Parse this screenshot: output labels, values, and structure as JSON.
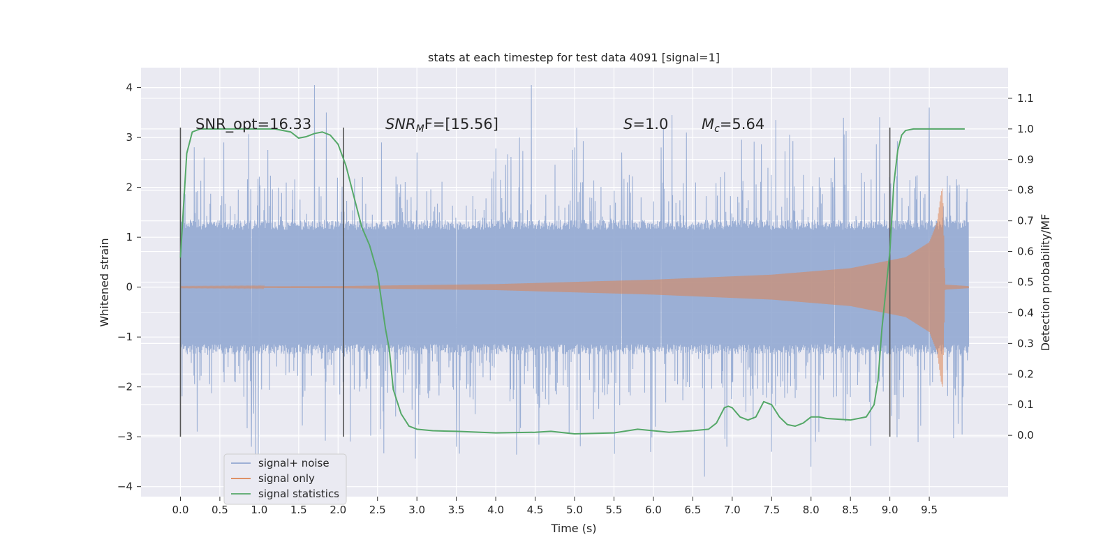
{
  "chart_data": {
    "type": "line",
    "title": "stats at each timestep for test data 4091 [signal=1]",
    "xlabel": "Time (s)",
    "ylabel": "Whitened strain",
    "ylabel_right": "Detection probability/MF",
    "xlim": [
      -0.5,
      10.5
    ],
    "ylim": [
      -4.2,
      4.4
    ],
    "ylim_right": [
      -0.2,
      1.2
    ],
    "x_ticks": [
      "0.0",
      "0.5",
      "1.0",
      "1.5",
      "2.0",
      "2.5",
      "3.0",
      "3.5",
      "4.0",
      "4.5",
      "5.0",
      "5.5",
      "6.0",
      "6.5",
      "7.0",
      "7.5",
      "8.0",
      "8.5",
      "9.0",
      "9.5"
    ],
    "y_ticks": [
      "−4",
      "−3",
      "−2",
      "−1",
      "0",
      "1",
      "2",
      "3",
      "4"
    ],
    "y_ticks_right": [
      "0.0",
      "0.1",
      "0.2",
      "0.3",
      "0.4",
      "0.5",
      "0.6",
      "0.7",
      "0.8",
      "0.9",
      "1.0",
      "1.1"
    ],
    "grid": true,
    "legend_position": "lower-left",
    "annotations": {
      "snr_opt": "SNR_opt=16.33",
      "snr_mf_base": "SNR",
      "snr_mf_sub": "M",
      "snr_mf_rest": "F=[15.56]",
      "s_base": "S",
      "s_rest": "=1.0",
      "mc_base": "M",
      "mc_sub": "c",
      "mc_rest": "=5.64"
    },
    "vlines_x": [
      0.0,
      2.07,
      9.0
    ],
    "vline_range": [
      -3.0,
      3.2
    ],
    "series": [
      {
        "name": "signal+ noise",
        "color": "#92a8d1",
        "x_range": [
          0.0,
          10.0
        ],
        "amplitude_core": 1.35,
        "amplitude_max": 4.05,
        "peaks": [
          [
            0.3,
            2.6
          ],
          [
            0.55,
            2.9
          ],
          [
            0.9,
            -3.2
          ],
          [
            1.7,
            4.05
          ],
          [
            1.85,
            3.5
          ],
          [
            2.55,
            2.9
          ],
          [
            3.0,
            2.7
          ],
          [
            3.5,
            -3.2
          ],
          [
            4.3,
            3.0
          ],
          [
            4.45,
            4.05
          ],
          [
            5.0,
            2.8
          ],
          [
            5.6,
            2.7
          ],
          [
            6.1,
            2.8
          ],
          [
            6.65,
            -3.8
          ],
          [
            7.5,
            -3.3
          ],
          [
            8.0,
            -3.6
          ],
          [
            8.3,
            2.6
          ],
          [
            9.5,
            3.6
          ]
        ]
      },
      {
        "name": "signal only",
        "color": "#dd8452",
        "x_range": [
          0.0,
          10.0
        ],
        "envelope": [
          [
            0.0,
            0.01
          ],
          [
            2.0,
            0.02
          ],
          [
            4.0,
            0.06
          ],
          [
            6.0,
            0.15
          ],
          [
            7.5,
            0.25
          ],
          [
            8.5,
            0.38
          ],
          [
            9.2,
            0.6
          ],
          [
            9.5,
            0.9
          ],
          [
            9.6,
            1.3
          ],
          [
            9.65,
            1.9
          ],
          [
            9.67,
            2.0
          ],
          [
            9.7,
            0.05
          ],
          [
            10.0,
            0.02
          ]
        ]
      },
      {
        "name": "signal statistics",
        "color": "#55a868",
        "x": [
          0.0,
          0.08,
          0.15,
          0.25,
          0.5,
          1.0,
          1.2,
          1.4,
          1.5,
          1.6,
          1.7,
          1.8,
          1.9,
          2.0,
          2.1,
          2.2,
          2.3,
          2.4,
          2.5,
          2.6,
          2.65,
          2.7,
          2.8,
          2.9,
          3.0,
          3.2,
          3.5,
          4.0,
          4.5,
          4.7,
          5.0,
          5.5,
          5.8,
          6.2,
          6.5,
          6.7,
          6.8,
          6.9,
          6.95,
          7.0,
          7.1,
          7.2,
          7.3,
          7.4,
          7.45,
          7.5,
          7.6,
          7.7,
          7.8,
          7.9,
          8.0,
          8.1,
          8.2,
          8.5,
          8.7,
          8.8,
          8.85,
          8.9,
          9.0,
          9.05,
          9.1,
          9.15,
          9.2,
          9.3,
          9.5,
          9.8,
          9.95
        ],
        "y": [
          0.58,
          0.92,
          0.99,
          1.0,
          1.0,
          1.0,
          1.0,
          0.99,
          0.97,
          0.975,
          0.985,
          0.99,
          0.98,
          0.95,
          0.88,
          0.78,
          0.68,
          0.62,
          0.53,
          0.35,
          0.28,
          0.15,
          0.07,
          0.03,
          0.02,
          0.015,
          0.013,
          0.008,
          0.01,
          0.013,
          0.005,
          0.008,
          0.02,
          0.01,
          0.015,
          0.02,
          0.04,
          0.09,
          0.095,
          0.09,
          0.06,
          0.05,
          0.06,
          0.11,
          0.105,
          0.1,
          0.06,
          0.035,
          0.03,
          0.04,
          0.06,
          0.06,
          0.055,
          0.05,
          0.06,
          0.1,
          0.18,
          0.35,
          0.6,
          0.82,
          0.93,
          0.98,
          0.995,
          1.0,
          1.0,
          1.0,
          1.0
        ]
      }
    ]
  }
}
